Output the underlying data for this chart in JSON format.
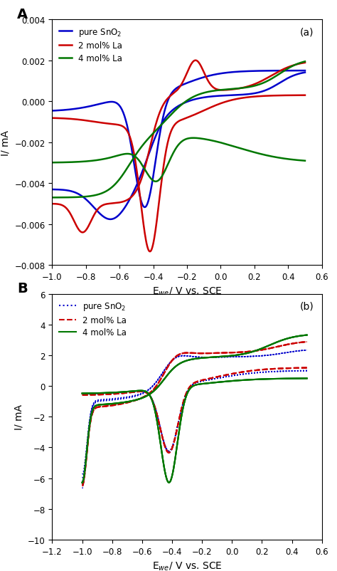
{
  "panel_a": {
    "title_label": "(a)",
    "panel_letter": "A",
    "xlabel": "E$_{we}$/ V vs. SCE",
    "ylabel": "I/ mA",
    "xlim": [
      -1.0,
      0.6
    ],
    "ylim": [
      -0.008,
      0.004
    ],
    "yticks": [
      -0.008,
      -0.006,
      -0.004,
      -0.002,
      0.0,
      0.002,
      0.004
    ],
    "xticks": [
      -1.0,
      -0.8,
      -0.6,
      -0.4,
      -0.2,
      0.0,
      0.2,
      0.4,
      0.6
    ],
    "colors": {
      "blue": "#0000cc",
      "red": "#cc0000",
      "green": "#007700"
    },
    "legend_labels": [
      "pure SnO$_2$",
      "2 mol% La",
      "4 mol% La"
    ]
  },
  "panel_b": {
    "title_label": "(b)",
    "panel_letter": "B",
    "xlabel": "E$_{we}$/ V vs. SCE",
    "ylabel": "I/ mA",
    "xlim": [
      -1.2,
      0.6
    ],
    "ylim": [
      -10,
      6
    ],
    "yticks": [
      -10,
      -8,
      -6,
      -4,
      -2,
      0,
      2,
      4,
      6
    ],
    "xticks": [
      -1.2,
      -1.0,
      -0.8,
      -0.6,
      -0.4,
      -0.2,
      0.0,
      0.2,
      0.4,
      0.6
    ],
    "colors": {
      "blue": "#0000cc",
      "red": "#cc0000",
      "green": "#007700"
    },
    "legend_labels": [
      "pure SnO$_2$",
      "2 mol% La",
      "4 mol% La"
    ]
  }
}
